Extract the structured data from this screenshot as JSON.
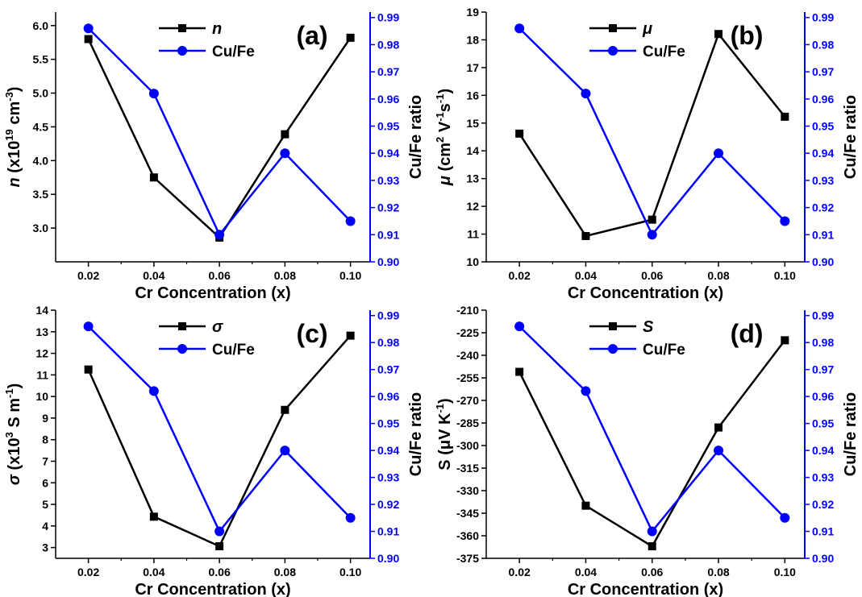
{
  "chart_data": [
    {
      "type": "line",
      "panel_label": "(a)",
      "xlabel": "Cr Concentration (x)",
      "ylabel_left": "n (x10¹⁹ cm⁻³)",
      "ylabel_right": "Cu/Fe ratio",
      "x": [
        0.02,
        0.04,
        0.06,
        0.08,
        0.1
      ],
      "x_ticks": [
        "0.02",
        "0.04",
        "0.06",
        "0.08",
        "0.10"
      ],
      "xlim": [
        0.01,
        0.106
      ],
      "ylim_left": [
        2.5,
        6.2
      ],
      "yticks_left": [
        "3.0",
        "3.5",
        "4.0",
        "4.5",
        "5.0",
        "5.5",
        "6.0"
      ],
      "ylim_right": [
        0.9,
        0.992
      ],
      "yticks_right": [
        "0.90",
        "0.91",
        "0.92",
        "0.93",
        "0.94",
        "0.95",
        "0.96",
        "0.97",
        "0.98",
        "0.99"
      ],
      "legend_position": "top-center",
      "series": [
        {
          "name": "n",
          "axis": "left",
          "color": "#000000",
          "marker": "square",
          "values": [
            5.8,
            3.75,
            2.86,
            4.39,
            5.82
          ]
        },
        {
          "name": "Cu/Fe",
          "axis": "right",
          "color": "#0000ff",
          "marker": "circle",
          "values": [
            0.986,
            0.962,
            0.91,
            0.94,
            0.915
          ]
        }
      ]
    },
    {
      "type": "line",
      "panel_label": "(b)",
      "xlabel": "Cr Concentration (x)",
      "ylabel_left": "μ (cm² V⁻¹s⁻¹)",
      "ylabel_right": "Cu/Fe ratio",
      "x": [
        0.02,
        0.04,
        0.06,
        0.08,
        0.1
      ],
      "x_ticks": [
        "0.02",
        "0.04",
        "0.06",
        "0.08",
        "0.10"
      ],
      "xlim": [
        0.01,
        0.106
      ],
      "ylim_left": [
        10,
        19
      ],
      "yticks_left": [
        "10",
        "11",
        "12",
        "13",
        "14",
        "15",
        "16",
        "17",
        "18",
        "19"
      ],
      "ylim_right": [
        0.9,
        0.992
      ],
      "yticks_right": [
        "0.90",
        "0.91",
        "0.92",
        "0.93",
        "0.94",
        "0.95",
        "0.96",
        "0.97",
        "0.98",
        "0.99"
      ],
      "legend_position": "top-center",
      "series": [
        {
          "name": "μ",
          "axis": "left",
          "color": "#000000",
          "marker": "square",
          "values": [
            14.62,
            10.93,
            11.52,
            18.21,
            15.23
          ]
        },
        {
          "name": "Cu/Fe",
          "axis": "right",
          "color": "#0000ff",
          "marker": "circle",
          "values": [
            0.986,
            0.962,
            0.91,
            0.94,
            0.915
          ]
        }
      ]
    },
    {
      "type": "line",
      "panel_label": "(c)",
      "xlabel": "Cr Concentration (x)",
      "ylabel_left": "σ (x10³ S m⁻¹)",
      "ylabel_right": "Cu/Fe ratio",
      "x": [
        0.02,
        0.04,
        0.06,
        0.08,
        0.1
      ],
      "x_ticks": [
        "0.02",
        "0.04",
        "0.06",
        "0.08",
        "0.10"
      ],
      "xlim": [
        0.01,
        0.106
      ],
      "ylim_left": [
        2.5,
        14
      ],
      "yticks_left": [
        "3",
        "4",
        "5",
        "6",
        "7",
        "8",
        "9",
        "10",
        "11",
        "12",
        "13",
        "14"
      ],
      "ylim_right": [
        0.9,
        0.992
      ],
      "yticks_right": [
        "0.90",
        "0.91",
        "0.92",
        "0.93",
        "0.94",
        "0.95",
        "0.96",
        "0.97",
        "0.98",
        "0.99"
      ],
      "legend_position": "top-center",
      "series": [
        {
          "name": "σ",
          "axis": "left",
          "color": "#000000",
          "marker": "square",
          "values": [
            11.25,
            4.43,
            3.06,
            9.38,
            12.82
          ]
        },
        {
          "name": "Cu/Fe",
          "axis": "right",
          "color": "#0000ff",
          "marker": "circle",
          "values": [
            0.986,
            0.962,
            0.91,
            0.94,
            0.915
          ]
        }
      ]
    },
    {
      "type": "line",
      "panel_label": "(d)",
      "xlabel": "Cr Concentration (x)",
      "ylabel_left": "S (μV K⁻¹)",
      "ylabel_right": "Cu/Fe ratio",
      "x": [
        0.02,
        0.04,
        0.06,
        0.08,
        0.1
      ],
      "x_ticks": [
        "0.02",
        "0.04",
        "0.06",
        "0.08",
        "0.10"
      ],
      "xlim": [
        0.01,
        0.106
      ],
      "ylim_left": [
        -375,
        -210
      ],
      "yticks_left": [
        "-375",
        "-360",
        "-345",
        "-330",
        "-315",
        "-300",
        "-285",
        "-270",
        "-255",
        "-240",
        "-225",
        "-210"
      ],
      "ylim_right": [
        0.9,
        0.992
      ],
      "yticks_right": [
        "0.90",
        "0.91",
        "0.92",
        "0.93",
        "0.94",
        "0.95",
        "0.96",
        "0.97",
        "0.98",
        "0.99"
      ],
      "legend_position": "top-center",
      "series": [
        {
          "name": "S",
          "axis": "left",
          "color": "#000000",
          "marker": "square",
          "values": [
            -251,
            -340,
            -367,
            -288,
            -230
          ]
        },
        {
          "name": "Cu/Fe",
          "axis": "right",
          "color": "#0000ff",
          "marker": "circle",
          "values": [
            0.986,
            0.962,
            0.91,
            0.94,
            0.915
          ]
        }
      ]
    }
  ]
}
